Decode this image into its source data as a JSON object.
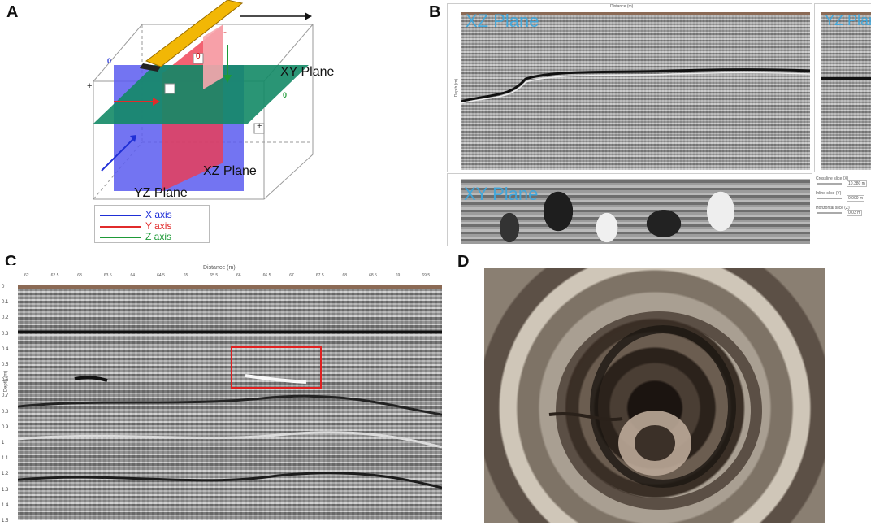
{
  "panels": {
    "a": {
      "letter": "A",
      "labels": {
        "xy_plane": "XY Plane",
        "xz_plane": "XZ Plane",
        "yz_plane": "YZ Plane"
      },
      "markers": {
        "zero": "0",
        "plus": "+",
        "minus": "-"
      },
      "legend": [
        {
          "label": "X axis",
          "color": "#1f2fd6"
        },
        {
          "label": "Y axis",
          "color": "#e12b2b"
        },
        {
          "label": "Z axis",
          "color": "#1e9a37"
        }
      ]
    },
    "b": {
      "letter": "B",
      "labels": {
        "xz_plane": "XZ Plane",
        "yz_plane": "YZ Plan",
        "xy_plane": "XY Plane"
      },
      "distance_label": "Distance (m)",
      "depth_label": "Depth (m)",
      "controls": [
        {
          "label": "Crossline slice (X)",
          "value": "10.380 m"
        },
        {
          "label": "Inline slice (Y)",
          "value": "0.000 m"
        },
        {
          "label": "Horizontal slice (Z)",
          "value": "0.03 m"
        }
      ]
    },
    "c": {
      "letter": "C",
      "distance_label": "Distance (m)",
      "depth_label": "Depth (m)",
      "x_ticks": [
        "62",
        "62.5",
        "63",
        "63.5",
        "64",
        "64.5",
        "65",
        "65.5",
        "66",
        "66.5",
        "67",
        "67.5",
        "68",
        "68.5",
        "69",
        "69.5"
      ],
      "y_ticks": [
        "0",
        "0.1",
        "0.2",
        "0.3",
        "0.4",
        "0.5",
        "0.6",
        "0.7",
        "0.8",
        "0.9",
        "1",
        "1.1",
        "1.2",
        "1.3",
        "1.4",
        "1.5"
      ]
    },
    "d": {
      "letter": "D"
    }
  },
  "colors": {
    "x_axis": "#1f2fd6",
    "y_axis": "#e12b2b",
    "z_axis": "#1e9a37",
    "plane_label_blue": "#3aa8e0",
    "highlight_box": "#e02020",
    "antenna_yellow": "#f2b705"
  }
}
